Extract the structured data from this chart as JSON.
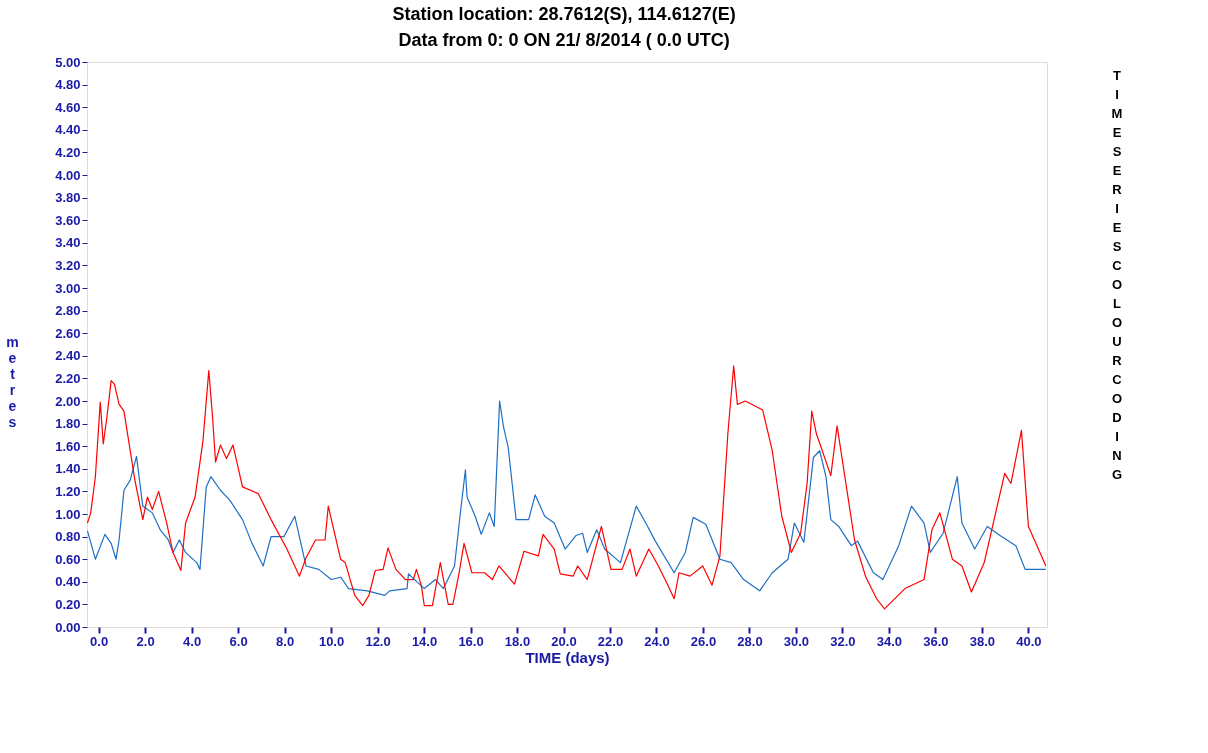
{
  "chart_data": {
    "type": "line",
    "title": "Station location: 28.7612(S),  114.6127(E)",
    "subtitle": "Data from  0: 0 ON 21/ 8/2014 ( 0.0 UTC)",
    "xlabel": "TIME (days)",
    "ylabel": "metres",
    "annotations": [
      "TIME SERIES COLOUR CODING"
    ],
    "xlim": [
      -0.5,
      40.8
    ],
    "ylim": [
      0,
      5
    ],
    "xticks": [
      {
        "value": 0,
        "label": "0.0"
      },
      {
        "value": 2,
        "label": "2.0"
      },
      {
        "value": 4,
        "label": "4.0"
      },
      {
        "value": 6,
        "label": "6.0"
      },
      {
        "value": 8,
        "label": "8.0"
      },
      {
        "value": 10,
        "label": "10.0"
      },
      {
        "value": 12,
        "label": "12.0"
      },
      {
        "value": 14,
        "label": "14.0"
      },
      {
        "value": 16,
        "label": "16.0"
      },
      {
        "value": 18,
        "label": "18.0"
      },
      {
        "value": 20,
        "label": "20.0"
      },
      {
        "value": 22,
        "label": "22.0"
      },
      {
        "value": 24,
        "label": "24.0"
      },
      {
        "value": 26,
        "label": "26.0"
      },
      {
        "value": 28,
        "label": "28.0"
      },
      {
        "value": 30,
        "label": "30.0"
      },
      {
        "value": 32,
        "label": "32.0"
      },
      {
        "value": 34,
        "label": "34.0"
      },
      {
        "value": 36,
        "label": "36.0"
      },
      {
        "value": 38,
        "label": "38.0"
      },
      {
        "value": 40,
        "label": "40.0"
      }
    ],
    "yticks": [
      {
        "value": 0,
        "label": "0.00"
      },
      {
        "value": 0.2,
        "label": "0.20"
      },
      {
        "value": 0.4,
        "label": "0.40"
      },
      {
        "value": 0.6,
        "label": "0.60"
      },
      {
        "value": 0.8,
        "label": "0.80"
      },
      {
        "value": 1,
        "label": "1.00"
      },
      {
        "value": 1.2,
        "label": "1.20"
      },
      {
        "value": 1.4,
        "label": "1.40"
      },
      {
        "value": 1.6,
        "label": "1.60"
      },
      {
        "value": 1.8,
        "label": "1.80"
      },
      {
        "value": 2,
        "label": "2.00"
      },
      {
        "value": 2.2,
        "label": "2.20"
      },
      {
        "value": 2.4,
        "label": "2.40"
      },
      {
        "value": 2.6,
        "label": "2.60"
      },
      {
        "value": 2.8,
        "label": "2.80"
      },
      {
        "value": 3,
        "label": "3.00"
      },
      {
        "value": 3.2,
        "label": "3.20"
      },
      {
        "value": 3.4,
        "label": "3.40"
      },
      {
        "value": 3.6,
        "label": "3.60"
      },
      {
        "value": 3.8,
        "label": "3.80"
      },
      {
        "value": 4,
        "label": "4.00"
      },
      {
        "value": 4.2,
        "label": "4.20"
      },
      {
        "value": 4.4,
        "label": "4.40"
      },
      {
        "value": 4.6,
        "label": "4.60"
      },
      {
        "value": 4.8,
        "label": "4.80"
      },
      {
        "value": 5,
        "label": "5.00"
      }
    ],
    "grid": false,
    "series": [
      {
        "color": "#1f6fc4",
        "x": [
          -0.48,
          -0.14,
          0.27,
          0.54,
          0.75,
          0.88,
          1.09,
          1.36,
          1.63,
          1.9,
          2.31,
          2.65,
          3.0,
          3.2,
          3.47,
          3.74,
          4.22,
          4.36,
          4.63,
          4.83,
          5.24,
          5.65,
          6.19,
          6.6,
          7.08,
          7.42,
          7.97,
          8.44,
          8.92,
          9.47,
          10.01,
          10.42,
          10.75,
          11.56,
          12.31,
          12.52,
          13.27,
          13.33,
          14.01,
          14.49,
          14.83,
          15.31,
          15.58,
          15.78,
          15.85,
          16.2,
          16.46,
          16.81,
          17.02,
          17.25,
          17.42,
          17.62,
          17.96,
          18.5,
          18.78,
          19.19,
          19.6,
          20.07,
          20.54,
          20.82,
          21.02,
          21.43,
          21.77,
          22.45,
          23.13,
          23.54,
          23.95,
          24.76,
          25.24,
          25.58,
          26.12,
          26.73,
          27.21,
          27.75,
          28.44,
          28.98,
          29.66,
          29.93,
          30.34,
          30.75,
          31.02,
          31.29,
          31.5,
          31.84,
          32.38,
          32.65,
          33.33,
          33.74,
          34.42,
          34.97,
          35.51,
          35.78,
          36.33,
          36.94,
          37.14,
          37.69,
          38.23,
          38.78,
          39.46,
          39.86,
          40.75
        ],
        "values": [
          0.85,
          0.6,
          0.82,
          0.74,
          0.6,
          0.77,
          1.21,
          1.3,
          1.51,
          1.07,
          1.01,
          0.86,
          0.77,
          0.66,
          0.77,
          0.66,
          0.57,
          0.51,
          1.24,
          1.33,
          1.21,
          1.12,
          0.95,
          0.74,
          0.54,
          0.8,
          0.8,
          0.98,
          0.54,
          0.51,
          0.42,
          0.44,
          0.34,
          0.32,
          0.28,
          0.32,
          0.34,
          0.47,
          0.34,
          0.42,
          0.34,
          0.54,
          1.04,
          1.39,
          1.15,
          0.98,
          0.82,
          1.01,
          0.89,
          2.0,
          1.77,
          1.59,
          0.95,
          0.95,
          1.17,
          0.98,
          0.92,
          0.69,
          0.81,
          0.83,
          0.66,
          0.86,
          0.69,
          0.57,
          1.07,
          0.92,
          0.76,
          0.48,
          0.66,
          0.97,
          0.91,
          0.6,
          0.57,
          0.42,
          0.32,
          0.48,
          0.6,
          0.92,
          0.75,
          1.5,
          1.56,
          1.33,
          0.95,
          0.89,
          0.72,
          0.76,
          0.48,
          0.42,
          0.72,
          1.07,
          0.92,
          0.66,
          0.83,
          1.33,
          0.92,
          0.69,
          0.89,
          0.81,
          0.72,
          0.51,
          0.51
        ]
      },
      {
        "color": "#ff0000",
        "x": [
          -0.48,
          -0.34,
          -0.14,
          0.07,
          0.2,
          0.34,
          0.54,
          0.68,
          0.88,
          1.09,
          1.29,
          1.56,
          1.9,
          2.1,
          2.31,
          2.58,
          2.93,
          3.2,
          3.54,
          3.74,
          4.15,
          4.49,
          4.74,
          4.9,
          5.03,
          5.24,
          5.5,
          5.78,
          6.19,
          6.87,
          7.42,
          8.1,
          8.64,
          8.92,
          9.33,
          9.74,
          9.88,
          10.41,
          10.61,
          11.02,
          11.36,
          11.63,
          11.9,
          12.24,
          12.45,
          12.79,
          13.2,
          13.54,
          13.67,
          13.88,
          14.01,
          14.36,
          14.7,
          15.04,
          15.24,
          15.51,
          15.72,
          16.06,
          16.6,
          16.94,
          17.22,
          17.89,
          18.3,
          18.92,
          19.12,
          19.6,
          19.86,
          20.41,
          20.61,
          21.02,
          21.63,
          22.04,
          22.52,
          22.86,
          23.13,
          23.67,
          24.08,
          24.49,
          24.76,
          24.97,
          25.44,
          25.99,
          26.39,
          26.73,
          27.07,
          27.32,
          27.48,
          27.82,
          28.57,
          28.98,
          29.39,
          29.8,
          30.2,
          30.48,
          30.68,
          30.88,
          31.5,
          31.77,
          32.52,
          32.99,
          33.47,
          33.81,
          34.69,
          35.51,
          35.85,
          36.19,
          36.73,
          37.14,
          37.55,
          38.1,
          38.98,
          39.25,
          39.7,
          40.0,
          40.54,
          40.75
        ],
        "values": [
          0.92,
          1.01,
          1.33,
          1.99,
          1.62,
          1.83,
          2.18,
          2.15,
          1.97,
          1.91,
          1.65,
          1.3,
          0.95,
          1.15,
          1.04,
          1.2,
          0.92,
          0.66,
          0.5,
          0.92,
          1.15,
          1.65,
          2.27,
          1.86,
          1.46,
          1.61,
          1.49,
          1.61,
          1.24,
          1.18,
          0.95,
          0.69,
          0.45,
          0.61,
          0.77,
          0.77,
          1.07,
          0.6,
          0.57,
          0.28,
          0.19,
          0.28,
          0.5,
          0.51,
          0.7,
          0.51,
          0.42,
          0.42,
          0.51,
          0.37,
          0.19,
          0.19,
          0.57,
          0.2,
          0.2,
          0.48,
          0.74,
          0.48,
          0.48,
          0.42,
          0.54,
          0.38,
          0.67,
          0.63,
          0.82,
          0.69,
          0.47,
          0.45,
          0.54,
          0.42,
          0.89,
          0.51,
          0.51,
          0.69,
          0.45,
          0.69,
          0.54,
          0.37,
          0.25,
          0.48,
          0.45,
          0.54,
          0.37,
          0.63,
          1.71,
          2.31,
          1.97,
          2.0,
          1.92,
          1.56,
          0.98,
          0.66,
          0.83,
          1.27,
          1.91,
          1.71,
          1.34,
          1.78,
          0.77,
          0.45,
          0.25,
          0.16,
          0.34,
          0.42,
          0.86,
          1.01,
          0.6,
          0.54,
          0.31,
          0.57,
          1.36,
          1.27,
          1.74,
          0.89,
          0.64,
          0.54
        ]
      }
    ]
  }
}
